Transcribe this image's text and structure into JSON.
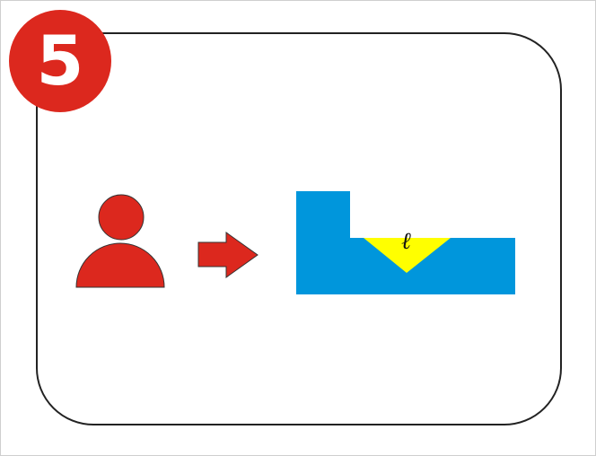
{
  "step": {
    "number": "5"
  },
  "colors": {
    "accent_red": "#dc281e",
    "block_blue": "#0096dc",
    "marker_yellow": "#ffff00",
    "frame": "#222222"
  },
  "icons": {
    "person": "person-icon",
    "arrow": "arrow-right-icon",
    "block": "l-shaped-block-icon",
    "marker": "triangle-marker-icon"
  },
  "block": {
    "glyph": "ℓ"
  }
}
